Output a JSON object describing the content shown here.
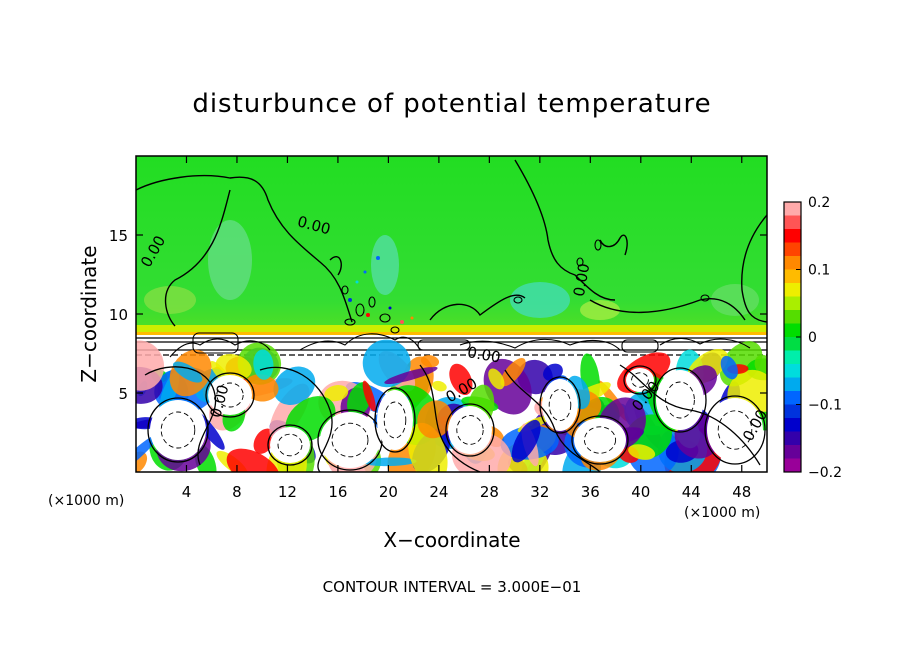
{
  "chart_data": {
    "type": "heatmap",
    "title": "disturbunce of potential temperature",
    "xlabel": "X−coordinate",
    "ylabel": "Z−coordinate",
    "x_unit_left": "(×1000 m)",
    "x_unit_right": "(×1000 m)",
    "footer": "CONTOUR INTERVAL = 3.000E−01",
    "xlim": [
      0,
      50
    ],
    "ylim": [
      0,
      20
    ],
    "x_ticks": [
      4,
      8,
      12,
      16,
      20,
      24,
      28,
      32,
      36,
      40,
      44,
      48
    ],
    "x_tick_labels": [
      "4",
      "8",
      "12",
      "16",
      "20",
      "24",
      "28",
      "32",
      "36",
      "40",
      "44",
      "48"
    ],
    "y_ticks": [
      5,
      10,
      15
    ],
    "y_tick_labels": [
      "5",
      "10",
      "15"
    ],
    "colorbar": {
      "range": [
        -0.2,
        0.2
      ],
      "ticks": [
        0.2,
        0.1,
        0,
        -0.1,
        -0.2
      ],
      "tick_labels": [
        "0.2",
        "0.1",
        "0",
        "−0.1",
        "−0.2"
      ],
      "colors": [
        "#ffaaaa",
        "#ff5555",
        "#ff0000",
        "#ff4400",
        "#ff8800",
        "#ffbb00",
        "#eeee00",
        "#aaee00",
        "#55dd00",
        "#00dd00",
        "#00dd44",
        "#00eeaa",
        "#00dddd",
        "#00aaee",
        "#0066ff",
        "#0033dd",
        "#0000cc",
        "#3300aa",
        "#660099",
        "#990099"
      ]
    },
    "contour_labels": [
      {
        "text": "0.00",
        "x": 1.7,
        "z": 13.8,
        "rotate": -60
      },
      {
        "text": "0.00",
        "x": 14.0,
        "z": 15.3,
        "rotate": 15
      },
      {
        "text": "0.00",
        "x": 35.7,
        "z": 12.1,
        "rotate": -80
      },
      {
        "text": "0.00",
        "x": 27.5,
        "z": 7.1,
        "rotate": 10
      },
      {
        "text": "0.00",
        "x": 7.0,
        "z": 4.4,
        "rotate": -75
      },
      {
        "text": "0.00",
        "x": 26.0,
        "z": 4.9,
        "rotate": -30
      },
      {
        "text": "0.00",
        "x": 40.7,
        "z": 4.6,
        "rotate": -50
      },
      {
        "text": "0.00",
        "x": 49.4,
        "z": 2.8,
        "rotate": -60
      }
    ]
  }
}
